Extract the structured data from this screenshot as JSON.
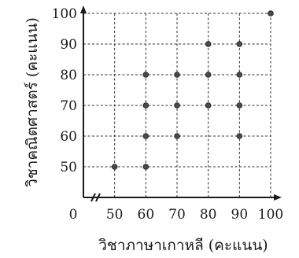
{
  "chart_data": {
    "type": "scatter",
    "title": "",
    "xlabel": "วิชาภาษาเกาหลี (คะแนน)",
    "ylabel": "วิชาคณิตศาสตร์ (คะแนน)",
    "origin_label": "0",
    "xlim": [
      40,
      100
    ],
    "ylim": [
      40,
      100
    ],
    "x_ticks": [
      50,
      60,
      70,
      80,
      90,
      100
    ],
    "y_ticks": [
      50,
      60,
      70,
      80,
      90,
      100
    ],
    "axis_break": true,
    "grid": true,
    "points": [
      {
        "x": 50,
        "y": 50
      },
      {
        "x": 60,
        "y": 50
      },
      {
        "x": 60,
        "y": 60
      },
      {
        "x": 60,
        "y": 70
      },
      {
        "x": 60,
        "y": 80
      },
      {
        "x": 70,
        "y": 60
      },
      {
        "x": 70,
        "y": 70
      },
      {
        "x": 70,
        "y": 80
      },
      {
        "x": 80,
        "y": 70
      },
      {
        "x": 80,
        "y": 80
      },
      {
        "x": 80,
        "y": 90
      },
      {
        "x": 90,
        "y": 60
      },
      {
        "x": 90,
        "y": 70
      },
      {
        "x": 90,
        "y": 80
      },
      {
        "x": 90,
        "y": 90
      },
      {
        "x": 100,
        "y": 100
      }
    ]
  }
}
